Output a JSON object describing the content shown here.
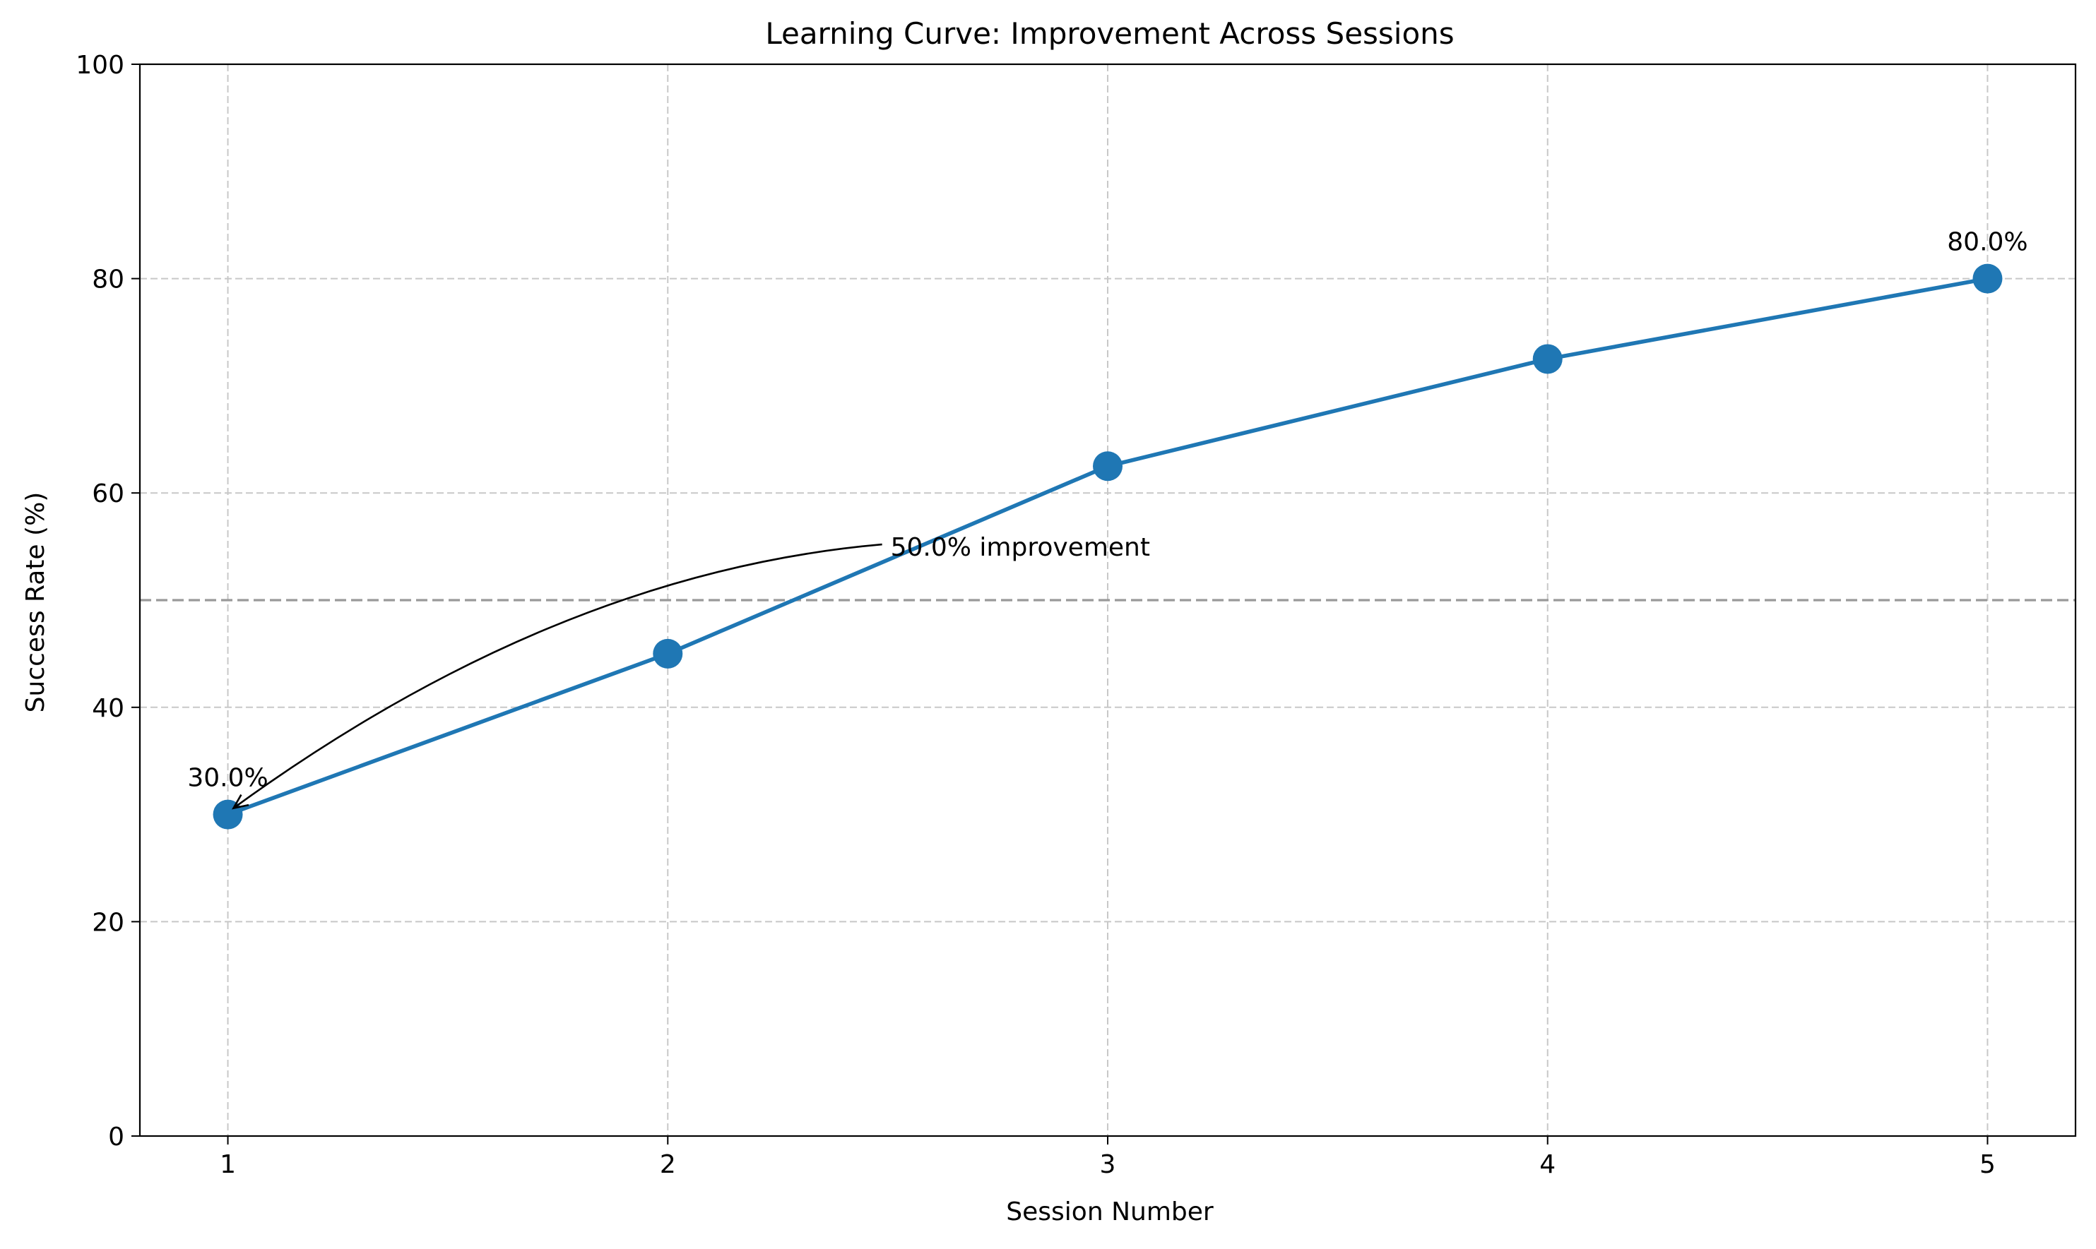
{
  "chart_data": {
    "type": "line",
    "title": "Learning Curve: Improvement Across Sessions",
    "xlabel": "Session Number",
    "ylabel": "Success Rate (%)",
    "x": [
      1,
      2,
      3,
      4,
      5
    ],
    "series": [
      {
        "values": [
          30,
          45,
          62.5,
          72.5,
          80
        ],
        "color": "#1f77b4"
      }
    ],
    "xlim": [
      0.8,
      5.2
    ],
    "ylim": [
      0,
      100
    ],
    "xticks": [
      "1",
      "2",
      "3",
      "4",
      "5"
    ],
    "yticks": [
      "0",
      "20",
      "40",
      "60",
      "80",
      "100"
    ],
    "grid": true,
    "reference_line": {
      "y": 50,
      "color": "#999999",
      "style": "dashed"
    },
    "point_labels": [
      {
        "x": 1,
        "y": 30,
        "text": "30.0%"
      },
      {
        "x": 5,
        "y": 80,
        "text": "80.0%"
      }
    ],
    "annotation": {
      "text": "50.0% improvement",
      "text_x": 2.5,
      "text_y": 55,
      "arrow_to_x": 1,
      "arrow_to_y": 30
    }
  }
}
